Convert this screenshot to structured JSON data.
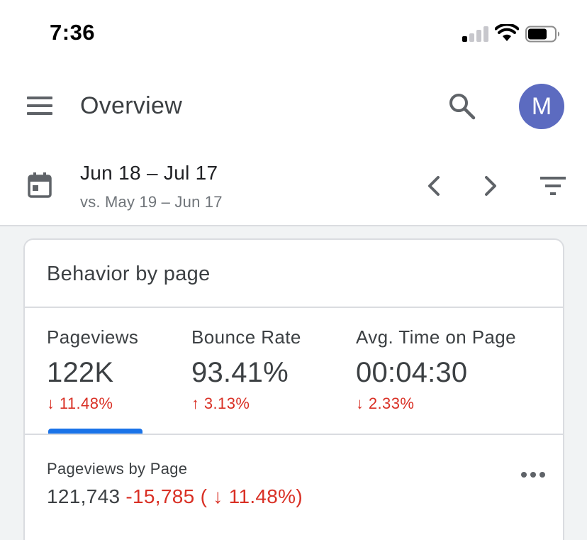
{
  "status_bar": {
    "time": "7:36",
    "signal_icon": "cellular-signal-icon",
    "wifi_icon": "wifi-icon",
    "battery_icon": "battery-icon"
  },
  "app_bar": {
    "menu_icon": "hamburger-menu-icon",
    "title": "Overview",
    "search_icon": "search-icon",
    "avatar_initial": "M",
    "avatar_color": "#5c6bc0"
  },
  "date_bar": {
    "calendar_icon": "calendar-icon",
    "range": "Jun 18 – Jul 17",
    "compare": "vs. May 19 – Jun 17",
    "prev_icon": "chevron-left-icon",
    "next_icon": "chevron-right-icon",
    "filter_icon": "filter-icon"
  },
  "card": {
    "title": "Behavior by page",
    "metrics": [
      {
        "label": "Pageviews",
        "value": "122K",
        "change": "↓ 11.48%",
        "selected": true
      },
      {
        "label": "Bounce Rate",
        "value": "93.41%",
        "change": "↑ 3.13%",
        "selected": false
      },
      {
        "label": "Avg. Time on Page",
        "value": "00:04:30",
        "change": "↓ 2.33%",
        "selected": false
      }
    ],
    "chart": {
      "label": "Pageviews by Page",
      "total": "121,743",
      "delta": "-15,785 ( ↓ 11.48%)",
      "more_icon": "more-horizontal-icon"
    }
  },
  "colors": {
    "accent": "#1a73e8",
    "negative": "#d93025",
    "text_secondary": "#70757a"
  }
}
